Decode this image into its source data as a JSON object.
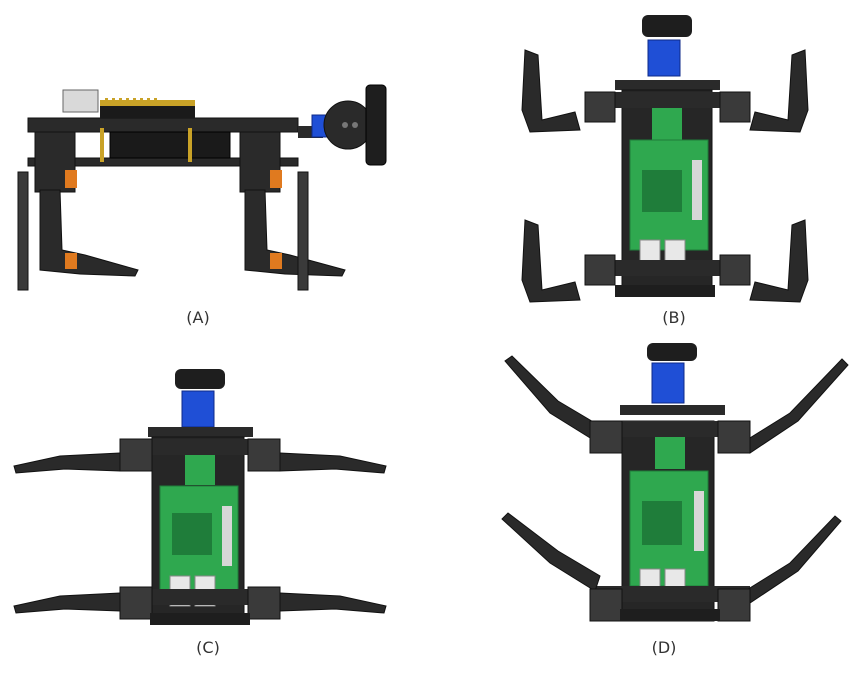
{
  "figure": {
    "panels": [
      {
        "id": "A",
        "label": "(A)"
      },
      {
        "id": "B",
        "label": "(B)"
      },
      {
        "id": "C",
        "label": "(C)"
      },
      {
        "id": "D",
        "label": "(D)"
      }
    ]
  },
  "colors": {
    "frame": "#2a2a2a",
    "frame_edge": "#111111",
    "pcb_green": "#2fa84f",
    "pcb_dark": "#1f7d3a",
    "servo_blue": "#1f4fd6",
    "servo_orange": "#e07a1f",
    "connector_white": "#e8e8e8",
    "gold": "#c9a227",
    "board_black": "#1a1a1a"
  }
}
